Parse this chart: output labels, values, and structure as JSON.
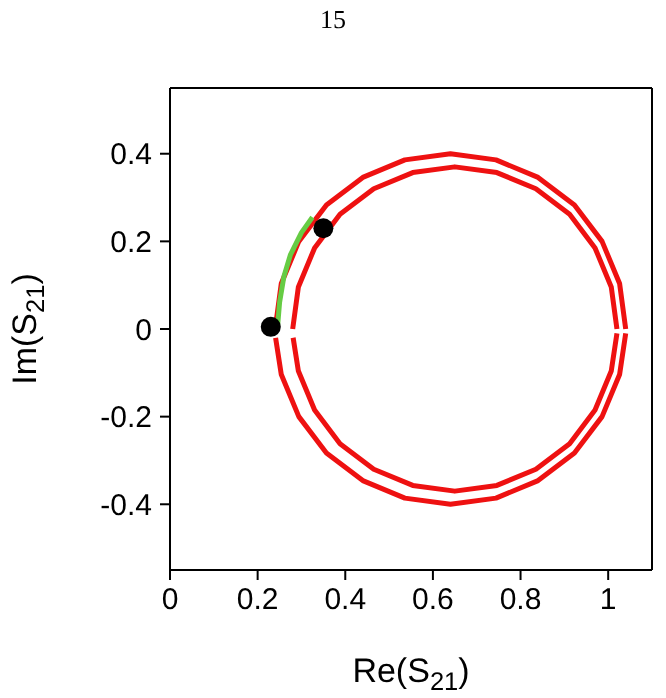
{
  "chart_data": {
    "type": "line",
    "xlabel": "Re(S$_{21}$)",
    "ylabel": "Im(S$_{21}$)",
    "annotations": [
      "15"
    ],
    "xlim": [
      0,
      1.1
    ],
    "ylim": [
      -0.55,
      0.55
    ],
    "xticks": [
      0,
      0.2,
      0.4,
      0.6,
      0.8,
      1
    ],
    "yticks": [
      -0.4,
      -0.2,
      0,
      0.2,
      0.4
    ],
    "marker": "none",
    "line_style": "solid",
    "series": [
      {
        "color": "#ee1111",
        "x": [
          0.24,
          0.254,
          0.294,
          0.357,
          0.44,
          0.536,
          0.64,
          0.744,
          0.84,
          0.923,
          0.986,
          1.026,
          1.04
        ],
        "values": [
          0,
          0.104,
          0.2,
          0.283,
          0.346,
          0.386,
          0.4,
          0.386,
          0.346,
          0.283,
          0.2,
          0.104,
          0
        ]
      },
      {
        "color": "#ee1111",
        "x": [
          0.241,
          0.254,
          0.294,
          0.357,
          0.44,
          0.536,
          0.64,
          0.744,
          0.84,
          0.923,
          0.986,
          1.026,
          1.04
        ],
        "values": [
          -0.02,
          -0.104,
          -0.2,
          -0.283,
          -0.346,
          -0.386,
          -0.4,
          -0.386,
          -0.346,
          -0.283,
          -0.2,
          -0.104,
          -0.01
        ]
      },
      {
        "color": "#ee1111",
        "x": [
          0.28,
          0.293,
          0.33,
          0.388,
          0.465,
          0.554,
          0.65,
          0.746,
          0.835,
          0.912,
          0.97,
          1.007,
          1.02
        ],
        "values": [
          0,
          0.096,
          0.185,
          0.262,
          0.32,
          0.357,
          0.37,
          0.357,
          0.32,
          0.262,
          0.185,
          0.096,
          0
        ]
      },
      {
        "color": "#ee1111",
        "x": [
          0.281,
          0.293,
          0.33,
          0.388,
          0.465,
          0.554,
          0.65,
          0.746,
          0.835,
          0.912,
          0.97,
          1.007,
          1.02
        ],
        "values": [
          -0.02,
          -0.096,
          -0.185,
          -0.262,
          -0.32,
          -0.357,
          -0.37,
          -0.357,
          -0.32,
          -0.262,
          -0.185,
          -0.096,
          -0.01
        ]
      },
      {
        "color": "#66cc44",
        "x": [
          0.245,
          0.25,
          0.26,
          0.275,
          0.3,
          0.325
        ],
        "values": [
          0,
          0.06,
          0.12,
          0.17,
          0.22,
          0.255
        ]
      },
      {
        "type": "scatter",
        "color": "#000000",
        "marker": "circle",
        "x": [
          0.23,
          0.35
        ],
        "values": [
          0.005,
          0.23
        ]
      }
    ]
  }
}
